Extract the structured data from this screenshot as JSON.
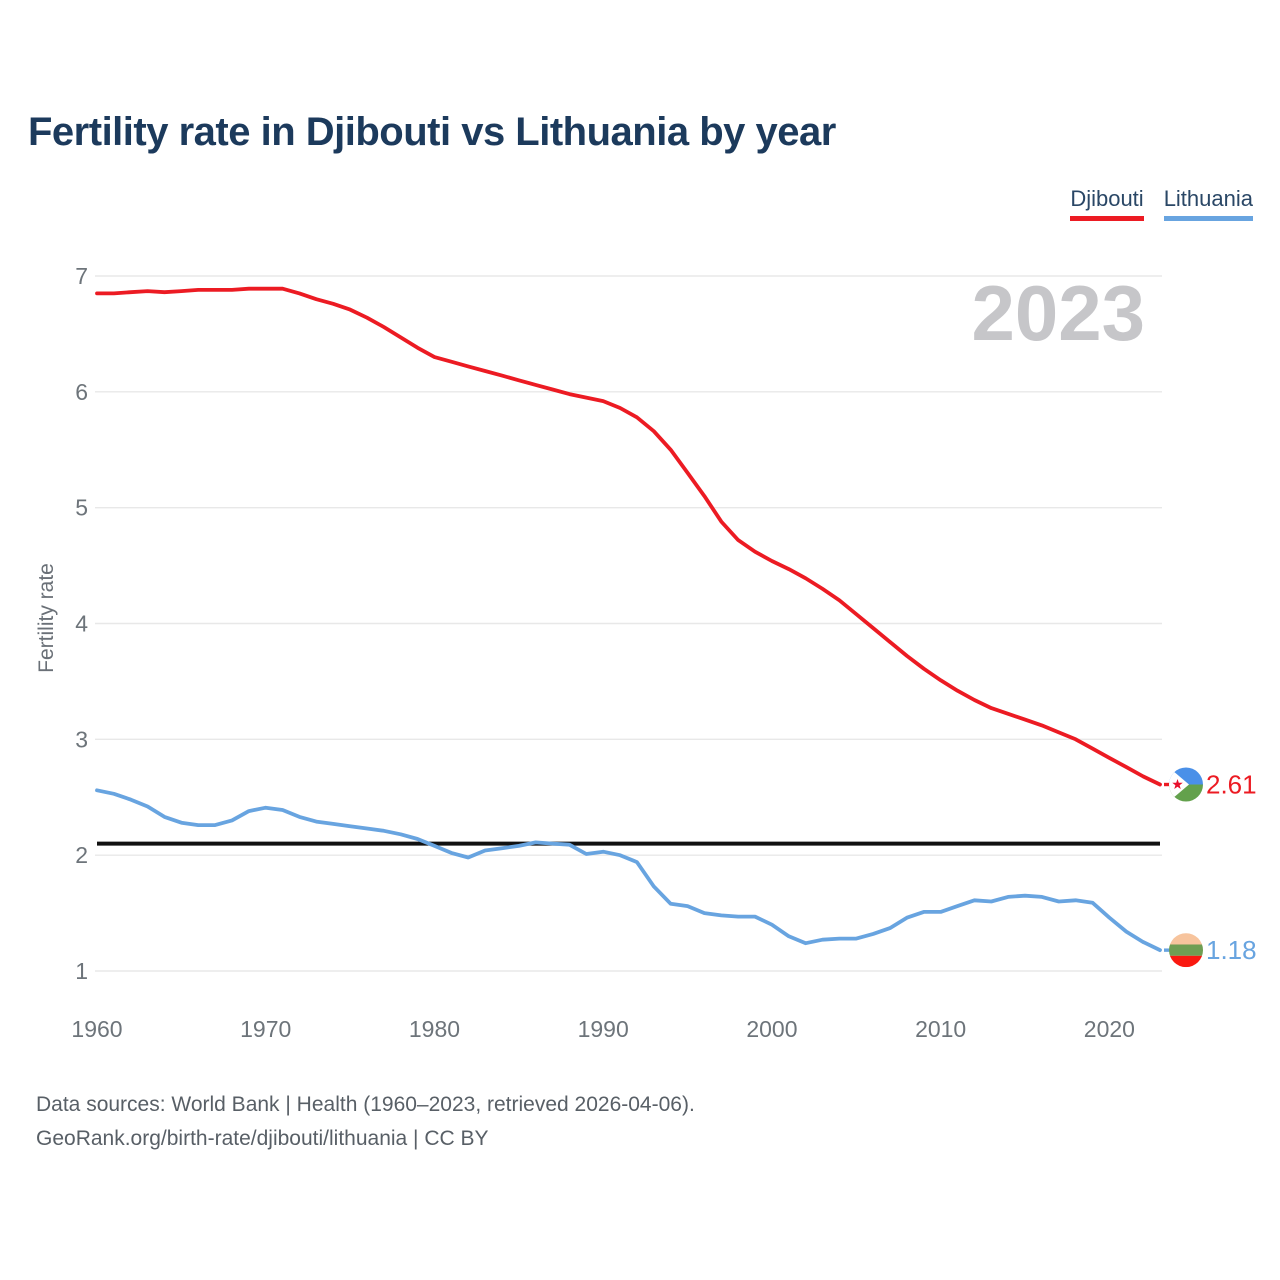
{
  "page": {
    "background": "#ffffff"
  },
  "header": {
    "title": "Fertility rate in Djibouti vs Lithuania by year"
  },
  "legend": {
    "items": [
      {
        "label": "Djibouti",
        "color": "#ec1b23"
      },
      {
        "label": "Lithuania",
        "color": "#68a4e0"
      }
    ]
  },
  "watermark": {
    "year_label": "2023"
  },
  "axis": {
    "ylabel": "Fertility rate"
  },
  "chart_data": {
    "type": "line",
    "title": "Fertility rate in Djibouti vs Lithuania by year",
    "xlabel": "",
    "ylabel": "Fertility rate",
    "xlim": [
      1960,
      2023
    ],
    "ylim": [
      1,
      7
    ],
    "x_ticks": [
      1960,
      1970,
      1980,
      1990,
      2000,
      2010,
      2020
    ],
    "y_ticks": [
      1,
      2,
      3,
      4,
      5,
      6,
      7
    ],
    "grid": "horizontal",
    "legend_position": "top-right",
    "years": [
      1960,
      1961,
      1962,
      1963,
      1964,
      1965,
      1966,
      1967,
      1968,
      1969,
      1970,
      1971,
      1972,
      1973,
      1974,
      1975,
      1976,
      1977,
      1978,
      1979,
      1980,
      1981,
      1982,
      1983,
      1984,
      1985,
      1986,
      1987,
      1988,
      1989,
      1990,
      1991,
      1992,
      1993,
      1994,
      1995,
      1996,
      1997,
      1998,
      1999,
      2000,
      2001,
      2002,
      2003,
      2004,
      2005,
      2006,
      2007,
      2008,
      2009,
      2010,
      2011,
      2012,
      2013,
      2014,
      2015,
      2016,
      2017,
      2018,
      2019,
      2020,
      2021,
      2022,
      2023
    ],
    "series": [
      {
        "name": "Djibouti",
        "color": "#ec1b23",
        "end_value_label": "2.61",
        "values": [
          6.85,
          6.85,
          6.86,
          6.87,
          6.86,
          6.87,
          6.88,
          6.88,
          6.88,
          6.89,
          6.89,
          6.89,
          6.85,
          6.8,
          6.76,
          6.71,
          6.64,
          6.56,
          6.47,
          6.38,
          6.3,
          6.26,
          6.22,
          6.18,
          6.14,
          6.1,
          6.06,
          6.02,
          5.98,
          5.95,
          5.92,
          5.86,
          5.78,
          5.66,
          5.5,
          5.3,
          5.1,
          4.88,
          4.72,
          4.62,
          4.54,
          4.47,
          4.39,
          4.3,
          4.2,
          4.08,
          3.96,
          3.84,
          3.72,
          3.61,
          3.51,
          3.42,
          3.34,
          3.27,
          3.22,
          3.17,
          3.12,
          3.06,
          3.0,
          2.92,
          2.84,
          2.76,
          2.68,
          2.61
        ]
      },
      {
        "name": "Lithuania",
        "color": "#68a4e0",
        "end_value_label": "1.18",
        "values": [
          2.56,
          2.53,
          2.48,
          2.42,
          2.33,
          2.28,
          2.26,
          2.26,
          2.3,
          2.38,
          2.41,
          2.39,
          2.33,
          2.29,
          2.27,
          2.25,
          2.23,
          2.21,
          2.18,
          2.14,
          2.08,
          2.02,
          1.98,
          2.04,
          2.06,
          2.08,
          2.11,
          2.1,
          2.09,
          2.01,
          2.03,
          2.0,
          1.94,
          1.73,
          1.58,
          1.56,
          1.5,
          1.48,
          1.47,
          1.47,
          1.4,
          1.3,
          1.24,
          1.27,
          1.28,
          1.28,
          1.32,
          1.37,
          1.46,
          1.51,
          1.51,
          1.56,
          1.61,
          1.6,
          1.64,
          1.65,
          1.64,
          1.6,
          1.61,
          1.59,
          1.46,
          1.34,
          1.25,
          1.18
        ]
      }
    ],
    "reference_line": {
      "value": 2.1,
      "color": "#111111"
    }
  },
  "flags": {
    "djibouti": {
      "blue": "#4a90e8",
      "green": "#63a14c",
      "triangle": "#ffffff",
      "star": "#e8112d"
    },
    "lithuania": {
      "top": "#f7c49d",
      "middle": "#6f9e53",
      "bottom": "#fa1910"
    }
  },
  "footer": {
    "line1": "Data sources: World Bank | Health (1960–2023, retrieved 2026-04-06).",
    "line2": "GeoRank.org/birth-rate/djibouti/lithuania | CC BY"
  },
  "colors": {
    "title": "#1c3a5c",
    "watermark": "#c6c6c9",
    "axis_text": "#6d747a",
    "footer_text": "#585f66",
    "gridline": "#e8e8e8",
    "legend_text": "#2a4766",
    "reference_line": "#111111"
  }
}
